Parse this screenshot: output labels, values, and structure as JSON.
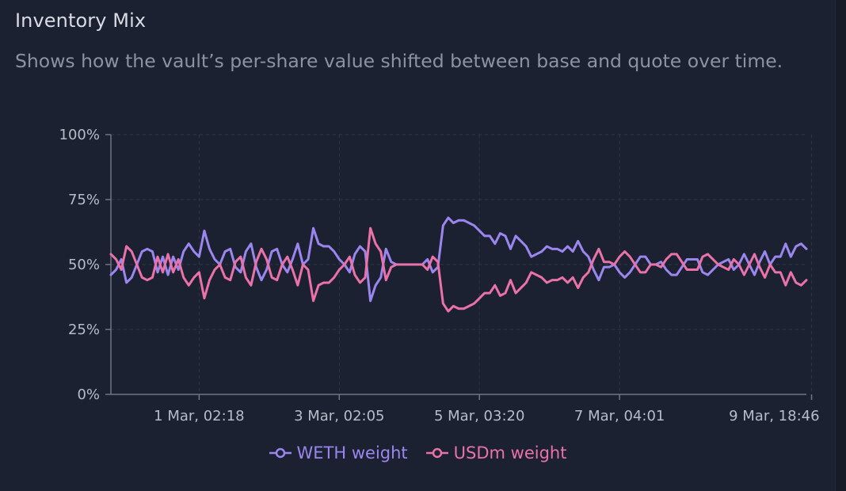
{
  "panel": {
    "title": "Inventory Mix",
    "subtitle": "Shows how the vault’s per-share value shifted between base and quote over time."
  },
  "colors": {
    "background": "#1b2130",
    "weth": "#9b86f0",
    "usdm": "#ea72a8",
    "axis": "#6f7685",
    "grid": "#2f3646"
  },
  "chart_data": {
    "type": "line",
    "title": "Inventory Mix",
    "xlabel": "",
    "ylabel": "",
    "ylim": [
      0,
      100
    ],
    "yticks": [
      "0%",
      "25%",
      "50%",
      "75%",
      "100%"
    ],
    "xtick_labels": [
      "1 Mar, 02:18",
      "3 Mar, 02:05",
      "5 Mar, 03:20",
      "7 Mar, 04:01",
      "9 Mar, 18:46"
    ],
    "xtick_index": [
      17,
      44,
      71,
      98,
      135
    ],
    "legend_position": "bottom-center",
    "series": [
      {
        "name": "WETH weight",
        "values": [
          46,
          48,
          52,
          43,
          45,
          50,
          55,
          56,
          55,
          47,
          53,
          46,
          53,
          48,
          55,
          58,
          55,
          53,
          63,
          56,
          52,
          50,
          55,
          56,
          49,
          47,
          55,
          58,
          49,
          44,
          48,
          55,
          56,
          50,
          47,
          52,
          58,
          50,
          52,
          64,
          58,
          57,
          57,
          55,
          52,
          50,
          47,
          54,
          57,
          55,
          36,
          42,
          45,
          56,
          51,
          50,
          50,
          50,
          50,
          50,
          50,
          52,
          47,
          49,
          65,
          68,
          66,
          67,
          67,
          66,
          65,
          63,
          61,
          61,
          58,
          62,
          61,
          56,
          61,
          59,
          57,
          53,
          54,
          55,
          57,
          56,
          56,
          55,
          57,
          55,
          59,
          55,
          53,
          48,
          44,
          49,
          49,
          50,
          47,
          45,
          47,
          50,
          53,
          53,
          50,
          50,
          51,
          48,
          46,
          46,
          49,
          52,
          52,
          52,
          47,
          46,
          48,
          50,
          51,
          52,
          48,
          50,
          54,
          50,
          46,
          51,
          55,
          50,
          53,
          53,
          58,
          53,
          57,
          58,
          56
        ]
      },
      {
        "name": "USDm weight",
        "values": [
          54,
          52,
          48,
          57,
          55,
          50,
          45,
          44,
          45,
          53,
          47,
          54,
          47,
          52,
          45,
          42,
          45,
          47,
          37,
          44,
          48,
          50,
          45,
          44,
          51,
          53,
          45,
          42,
          51,
          56,
          52,
          45,
          44,
          50,
          53,
          48,
          42,
          50,
          48,
          36,
          42,
          43,
          43,
          45,
          48,
          50,
          53,
          46,
          43,
          45,
          64,
          58,
          55,
          44,
          49,
          50,
          50,
          50,
          50,
          50,
          50,
          48,
          53,
          51,
          35,
          32,
          34,
          33,
          33,
          34,
          35,
          37,
          39,
          39,
          42,
          38,
          39,
          44,
          39,
          41,
          43,
          47,
          46,
          45,
          43,
          44,
          44,
          45,
          43,
          45,
          41,
          45,
          47,
          52,
          56,
          51,
          51,
          50,
          53,
          55,
          53,
          50,
          47,
          47,
          50,
          50,
          49,
          52,
          54,
          54,
          51,
          48,
          48,
          48,
          53,
          54,
          52,
          50,
          49,
          48,
          52,
          50,
          46,
          50,
          54,
          49,
          45,
          50,
          47,
          47,
          42,
          47,
          43,
          42,
          44
        ]
      }
    ]
  },
  "legend": {
    "weth_label": "WETH weight",
    "usdm_label": "USDm weight"
  }
}
